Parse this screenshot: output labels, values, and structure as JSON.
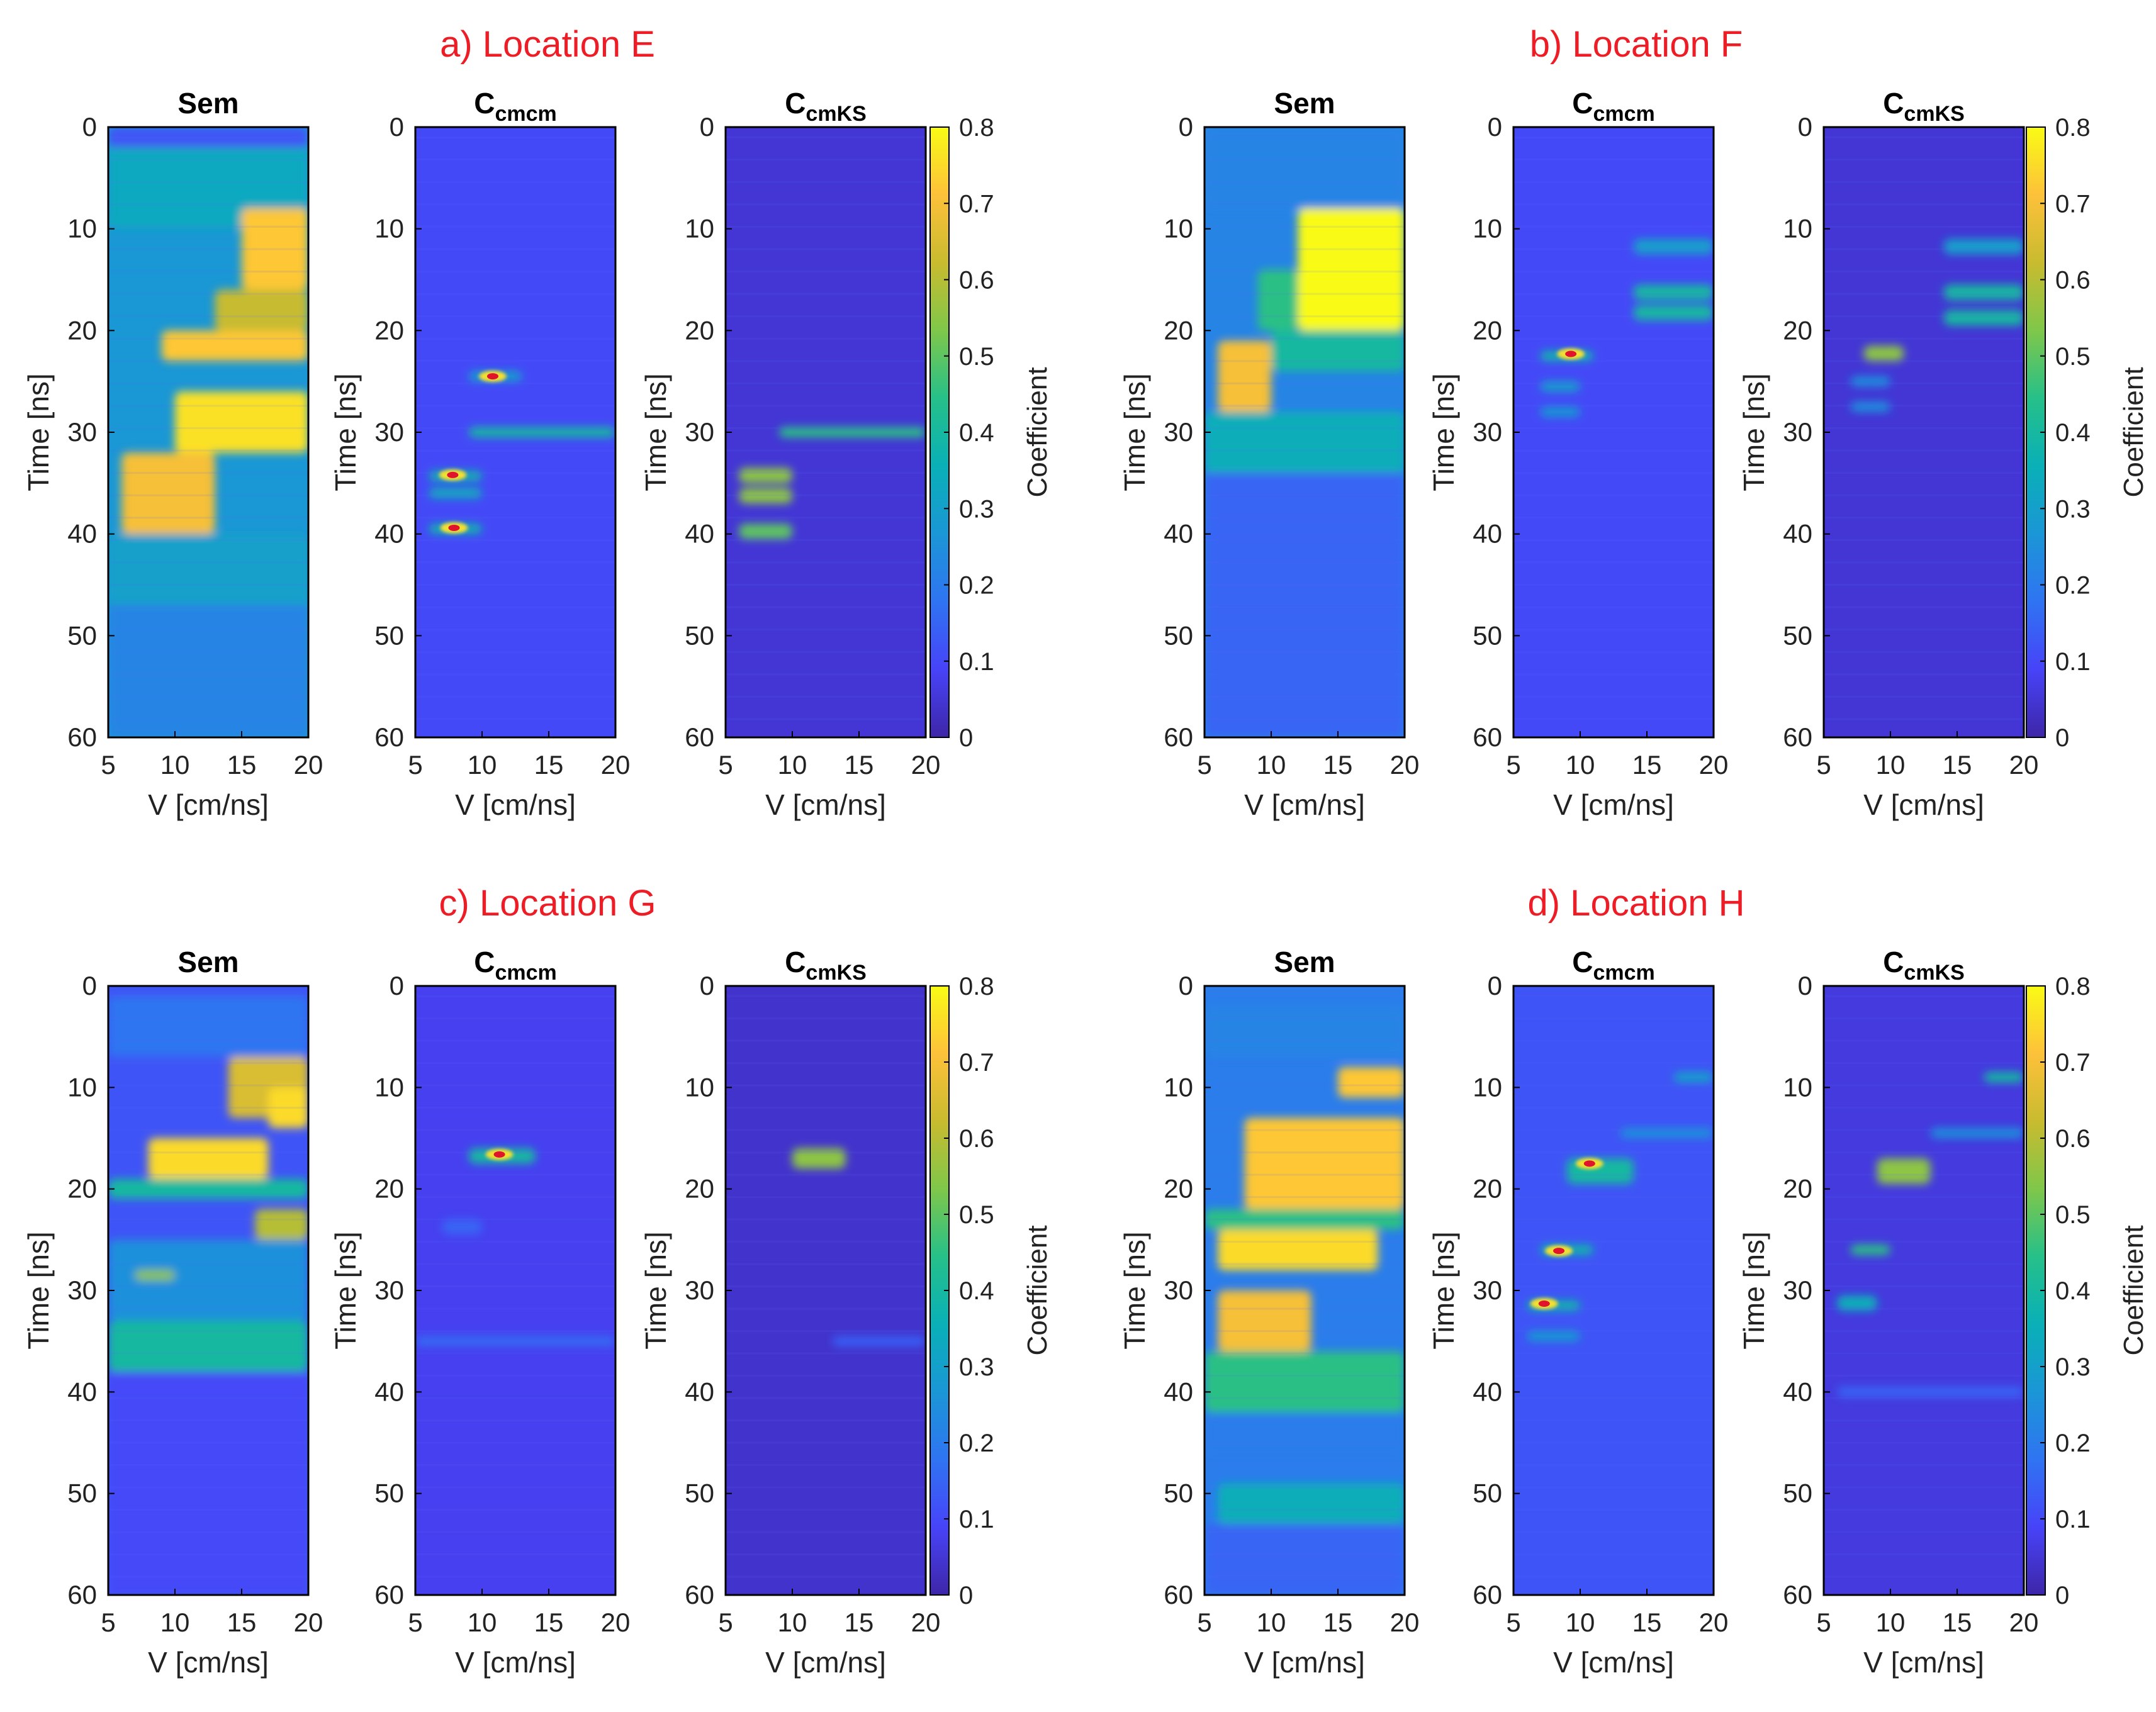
{
  "colormap": [
    "#3e26a8",
    "#4743f8",
    "#2f74f2",
    "#1b96d6",
    "#09b0b7",
    "#26c089",
    "#7fc74a",
    "#c9bb2f",
    "#fdc13a",
    "#f9fb15"
  ],
  "hotspot_color": "#e0152b",
  "colorbar": {
    "label": "Coefficient",
    "ticks": [
      "0",
      "0.1",
      "0.2",
      "0.3",
      "0.4",
      "0.5",
      "0.6",
      "0.7",
      "0.8"
    ],
    "range": [
      0,
      0.8
    ]
  },
  "axes_common": {
    "xlabel": "V [cm/ns]",
    "ylabel": "Time [ns]",
    "xticks": [
      "5",
      "10",
      "15",
      "20"
    ],
    "yticks": [
      "0",
      "10",
      "20",
      "30",
      "40",
      "50",
      "60"
    ],
    "xlim": [
      5,
      20
    ],
    "ylim": [
      0,
      60
    ]
  },
  "panel_titles": {
    "sem": "Sem",
    "c_base": "C",
    "cmcm_sub": "cmcm",
    "cmks_sub": "cmKS"
  },
  "chart_data": [
    {
      "type": "heatmap",
      "title": "a) Location E",
      "subplots": [
        {
          "name": "Sem",
          "background": 0.27,
          "bands": [
            {
              "t": [
                0,
                2
              ],
              "v": [
                5,
                20
              ],
              "c": 0.12
            },
            {
              "t": [
                2,
                10
              ],
              "v": [
                5,
                20
              ],
              "c": 0.33
            },
            {
              "t": [
                8,
                16
              ],
              "v": [
                15,
                20
              ],
              "c": 0.72
            },
            {
              "t": [
                16,
                20
              ],
              "v": [
                13,
                20
              ],
              "c": 0.62
            },
            {
              "t": [
                20,
                23
              ],
              "v": [
                9,
                20
              ],
              "c": 0.72
            },
            {
              "t": [
                26,
                32
              ],
              "v": [
                10,
                20
              ],
              "c": 0.76
            },
            {
              "t": [
                32,
                40
              ],
              "v": [
                6,
                13
              ],
              "c": 0.7
            },
            {
              "t": [
                40,
                47
              ],
              "v": [
                5,
                20
              ],
              "c": 0.3
            },
            {
              "t": [
                47,
                60
              ],
              "v": [
                5,
                20
              ],
              "c": 0.22
            }
          ]
        },
        {
          "name": "Ccmcm",
          "background": 0.1,
          "bands": [
            {
              "t": [
                29.5,
                30.5
              ],
              "v": [
                9,
                20
              ],
              "c": 0.4
            },
            {
              "t": [
                33.8,
                34.8
              ],
              "v": [
                6,
                10
              ],
              "c": 0.38
            },
            {
              "t": [
                35.5,
                36.5
              ],
              "v": [
                6,
                10
              ],
              "c": 0.35
            },
            {
              "t": [
                39,
                40
              ],
              "v": [
                6,
                10
              ],
              "c": 0.38
            },
            {
              "t": [
                24,
                25
              ],
              "v": [
                9,
                13
              ],
              "c": 0.3
            }
          ],
          "hotspots": [
            {
              "v": 10.8,
              "t": 24.5
            },
            {
              "v": 7.8,
              "t": 34.2
            },
            {
              "v": 7.9,
              "t": 39.4
            }
          ]
        },
        {
          "name": "CcmKS",
          "background": 0.05,
          "bands": [
            {
              "t": [
                29.5,
                30.5
              ],
              "v": [
                9,
                20
              ],
              "c": 0.45
            },
            {
              "t": [
                33.5,
                35
              ],
              "v": [
                6,
                10
              ],
              "c": 0.55
            },
            {
              "t": [
                35.5,
                37
              ],
              "v": [
                6,
                10
              ],
              "c": 0.55
            },
            {
              "t": [
                39,
                40.5
              ],
              "v": [
                6,
                10
              ],
              "c": 0.5
            }
          ],
          "hotspots": []
        }
      ]
    },
    {
      "type": "heatmap",
      "title": "b) Location F",
      "subplots": [
        {
          "name": "Sem",
          "background": 0.22,
          "bands": [
            {
              "t": [
                0,
                8
              ],
              "v": [
                5,
                20
              ],
              "c": 0.22
            },
            {
              "t": [
                8,
                20
              ],
              "v": [
                12,
                20
              ],
              "c": 0.8
            },
            {
              "t": [
                14,
                20
              ],
              "v": [
                9,
                12
              ],
              "c": 0.45
            },
            {
              "t": [
                21,
                28
              ],
              "v": [
                6,
                10
              ],
              "c": 0.7
            },
            {
              "t": [
                20,
                24
              ],
              "v": [
                10,
                20
              ],
              "c": 0.4
            },
            {
              "t": [
                28,
                34
              ],
              "v": [
                5,
                20
              ],
              "c": 0.35
            },
            {
              "t": [
                34,
                60
              ],
              "v": [
                5,
                20
              ],
              "c": 0.15
            }
          ]
        },
        {
          "name": "Ccmcm",
          "background": 0.1,
          "bands": [
            {
              "t": [
                11,
                12.5
              ],
              "v": [
                14,
                20
              ],
              "c": 0.3
            },
            {
              "t": [
                15.5,
                17
              ],
              "v": [
                14,
                20
              ],
              "c": 0.4
            },
            {
              "t": [
                17.5,
                19
              ],
              "v": [
                14,
                20
              ],
              "c": 0.4
            },
            {
              "t": [
                22,
                23
              ],
              "v": [
                7,
                11
              ],
              "c": 0.38
            },
            {
              "t": [
                25,
                26
              ],
              "v": [
                7,
                10
              ],
              "c": 0.3
            },
            {
              "t": [
                27.5,
                28.5
              ],
              "v": [
                7,
                10
              ],
              "c": 0.28
            }
          ],
          "hotspots": [
            {
              "v": 9.3,
              "t": 22.3
            }
          ]
        },
        {
          "name": "CcmKS",
          "background": 0.05,
          "bands": [
            {
              "t": [
                11,
                12.5
              ],
              "v": [
                14,
                20
              ],
              "c": 0.3
            },
            {
              "t": [
                15.5,
                17
              ],
              "v": [
                14,
                20
              ],
              "c": 0.4
            },
            {
              "t": [
                18,
                19.5
              ],
              "v": [
                14,
                20
              ],
              "c": 0.4
            },
            {
              "t": [
                21.5,
                23
              ],
              "v": [
                8,
                11
              ],
              "c": 0.55
            },
            {
              "t": [
                24.5,
                25.5
              ],
              "v": [
                7,
                10
              ],
              "c": 0.25
            },
            {
              "t": [
                27,
                28
              ],
              "v": [
                7,
                10
              ],
              "c": 0.25
            }
          ],
          "hotspots": []
        }
      ]
    },
    {
      "type": "heatmap",
      "title": "c) Location G",
      "subplots": [
        {
          "name": "Sem",
          "background": 0.12,
          "bands": [
            {
              "t": [
                1,
                7
              ],
              "v": [
                5,
                20
              ],
              "c": 0.18
            },
            {
              "t": [
                7,
                13
              ],
              "v": [
                14,
                20
              ],
              "c": 0.65
            },
            {
              "t": [
                10,
                14
              ],
              "v": [
                17,
                20
              ],
              "c": 0.75
            },
            {
              "t": [
                15,
                19
              ],
              "v": [
                8,
                17
              ],
              "c": 0.75
            },
            {
              "t": [
                19,
                21
              ],
              "v": [
                5,
                20
              ],
              "c": 0.4
            },
            {
              "t": [
                22,
                25
              ],
              "v": [
                16,
                20
              ],
              "c": 0.6
            },
            {
              "t": [
                25,
                33
              ],
              "v": [
                5,
                20
              ],
              "c": 0.25
            },
            {
              "t": [
                28,
                29
              ],
              "v": [
                7,
                10
              ],
              "c": 0.55
            },
            {
              "t": [
                33,
                38
              ],
              "v": [
                5,
                20
              ],
              "c": 0.4
            },
            {
              "t": [
                38,
                60
              ],
              "v": [
                5,
                20
              ],
              "c": 0.1
            }
          ]
        },
        {
          "name": "Ccmcm",
          "background": 0.08,
          "bands": [
            {
              "t": [
                16,
                17.5
              ],
              "v": [
                9,
                14
              ],
              "c": 0.4
            },
            {
              "t": [
                23,
                24.5
              ],
              "v": [
                7,
                10
              ],
              "c": 0.15
            },
            {
              "t": [
                34.5,
                35.5
              ],
              "v": [
                5,
                20
              ],
              "c": 0.16
            }
          ],
          "hotspots": [
            {
              "v": 11.3,
              "t": 16.6
            }
          ]
        },
        {
          "name": "CcmKS",
          "background": 0.04,
          "bands": [
            {
              "t": [
                16,
                18
              ],
              "v": [
                10,
                14
              ],
              "c": 0.55
            },
            {
              "t": [
                34.5,
                35.5
              ],
              "v": [
                13,
                20
              ],
              "c": 0.14
            }
          ],
          "hotspots": []
        }
      ]
    },
    {
      "type": "heatmap",
      "title": "d) Location H",
      "subplots": [
        {
          "name": "Sem",
          "background": 0.2,
          "bands": [
            {
              "t": [
                2,
                7
              ],
              "v": [
                5,
                20
              ],
              "c": 0.22
            },
            {
              "t": [
                8,
                11
              ],
              "v": [
                15,
                20
              ],
              "c": 0.72
            },
            {
              "t": [
                13,
                22
              ],
              "v": [
                8,
                20
              ],
              "c": 0.72
            },
            {
              "t": [
                22,
                24
              ],
              "v": [
                5,
                20
              ],
              "c": 0.45
            },
            {
              "t": [
                24,
                28
              ],
              "v": [
                6,
                18
              ],
              "c": 0.75
            },
            {
              "t": [
                30,
                36
              ],
              "v": [
                6,
                13
              ],
              "c": 0.7
            },
            {
              "t": [
                36,
                42
              ],
              "v": [
                5,
                20
              ],
              "c": 0.45
            },
            {
              "t": [
                42,
                46
              ],
              "v": [
                5,
                20
              ],
              "c": 0.2
            },
            {
              "t": [
                49,
                53
              ],
              "v": [
                6,
                20
              ],
              "c": 0.35
            },
            {
              "t": [
                53,
                60
              ],
              "v": [
                5,
                20
              ],
              "c": 0.15
            }
          ]
        },
        {
          "name": "Ccmcm",
          "background": 0.12,
          "bands": [
            {
              "t": [
                8.5,
                9.5
              ],
              "v": [
                17,
                20
              ],
              "c": 0.3
            },
            {
              "t": [
                14,
                15
              ],
              "v": [
                13,
                20
              ],
              "c": 0.25
            },
            {
              "t": [
                17,
                19.5
              ],
              "v": [
                9,
                14
              ],
              "c": 0.4
            },
            {
              "t": [
                25.5,
                26.5
              ],
              "v": [
                7,
                11
              ],
              "c": 0.38
            },
            {
              "t": [
                31,
                32
              ],
              "v": [
                6,
                10
              ],
              "c": 0.38
            },
            {
              "t": [
                34,
                35
              ],
              "v": [
                6,
                10
              ],
              "c": 0.28
            }
          ],
          "hotspots": [
            {
              "v": 10.7,
              "t": 17.5
            },
            {
              "v": 8.4,
              "t": 26.1
            },
            {
              "v": 7.3,
              "t": 31.3
            }
          ]
        },
        {
          "name": "CcmKS",
          "background": 0.06,
          "bands": [
            {
              "t": [
                8.5,
                9.5
              ],
              "v": [
                17,
                20
              ],
              "c": 0.4
            },
            {
              "t": [
                14,
                15
              ],
              "v": [
                13,
                20
              ],
              "c": 0.25
            },
            {
              "t": [
                17,
                19.5
              ],
              "v": [
                9,
                13
              ],
              "c": 0.55
            },
            {
              "t": [
                25.5,
                26.5
              ],
              "v": [
                7,
                10
              ],
              "c": 0.45
            },
            {
              "t": [
                30.5,
                32
              ],
              "v": [
                6,
                9
              ],
              "c": 0.35
            },
            {
              "t": [
                39.5,
                40.5
              ],
              "v": [
                6,
                20
              ],
              "c": 0.15
            }
          ],
          "hotspots": []
        }
      ]
    }
  ]
}
